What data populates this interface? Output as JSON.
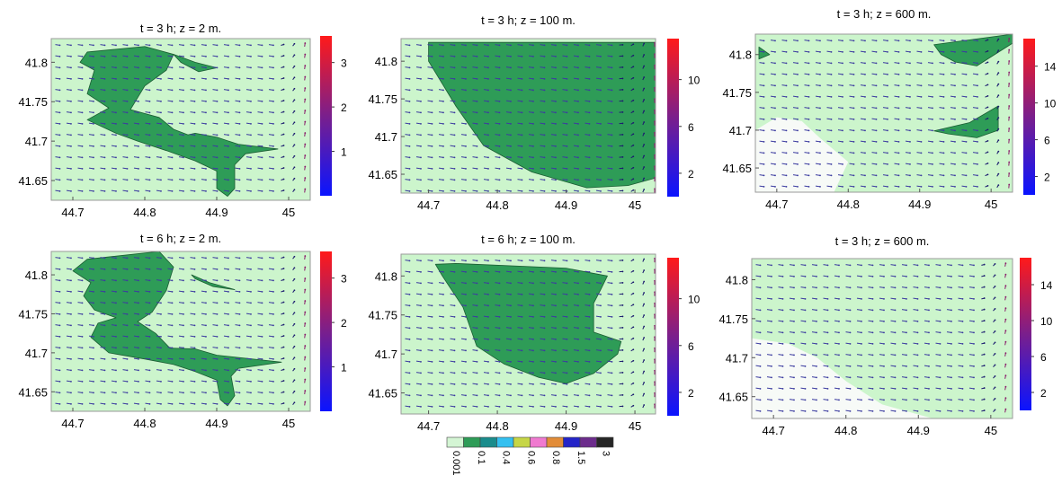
{
  "chart_data": [
    {
      "type": "heatmap",
      "title": "t = 3 h; z = 2 m.",
      "xticks": [
        "44.7",
        "44.8",
        "44.9",
        "45"
      ],
      "yticks": [
        "41.8",
        "41.75",
        "41.7",
        "41.65"
      ],
      "xlim": [
        44.67,
        45.03
      ],
      "ylim": [
        41.625,
        41.83
      ],
      "colorbar": {
        "ticks": [
          "3",
          "2",
          "1"
        ],
        "range": [
          0,
          3.6
        ]
      },
      "regions": [
        [
          [
            44.72,
            41.813
          ],
          [
            44.8,
            41.82
          ],
          [
            44.84,
            41.81
          ],
          [
            44.83,
            41.79
          ],
          [
            44.8,
            41.77
          ],
          [
            44.78,
            41.74
          ],
          [
            44.82,
            41.73
          ],
          [
            44.84,
            41.715
          ],
          [
            44.86,
            41.708
          ],
          [
            44.87,
            41.71
          ],
          [
            44.9,
            41.705
          ],
          [
            44.93,
            41.696
          ],
          [
            44.985,
            41.69
          ],
          [
            44.94,
            41.684
          ],
          [
            44.925,
            41.67
          ],
          [
            44.925,
            41.64
          ],
          [
            44.915,
            41.63
          ],
          [
            44.9,
            41.64
          ],
          [
            44.9,
            41.662
          ],
          [
            44.87,
            41.675
          ],
          [
            44.83,
            41.688
          ],
          [
            44.79,
            41.7
          ],
          [
            44.76,
            41.71
          ],
          [
            44.72,
            41.727
          ],
          [
            44.75,
            41.742
          ],
          [
            44.72,
            41.76
          ],
          [
            44.73,
            41.79
          ],
          [
            44.71,
            41.8
          ]
        ],
        [
          [
            44.84,
            41.81
          ],
          [
            44.87,
            41.8
          ],
          [
            44.9,
            41.793
          ],
          [
            44.875,
            41.788
          ],
          [
            44.85,
            41.8
          ]
        ]
      ],
      "vector_field": true
    },
    {
      "type": "heatmap",
      "title": "t = 3 h; z = 100 m.",
      "xticks": [
        "44.7",
        "44.8",
        "44.9",
        "45"
      ],
      "yticks": [
        "41.8",
        "41.75",
        "41.7",
        "41.65"
      ],
      "xlim": [
        44.66,
        45.03
      ],
      "ylim": [
        41.625,
        41.83
      ],
      "colorbar": {
        "ticks": [
          "10",
          "6",
          "2"
        ],
        "range": [
          0,
          13.5
        ]
      },
      "regions": [
        [
          [
            44.7,
            41.825
          ],
          [
            45.03,
            41.825
          ],
          [
            45.03,
            41.645
          ],
          [
            44.99,
            41.635
          ],
          [
            44.93,
            41.632
          ],
          [
            44.85,
            41.653
          ],
          [
            44.78,
            41.688
          ],
          [
            44.74,
            41.74
          ],
          [
            44.7,
            41.8
          ]
        ]
      ],
      "vector_field": true
    },
    {
      "type": "heatmap",
      "title": "t = 3 h; z = 600 m.",
      "xticks": [
        "44.7",
        "44.8",
        "44.9",
        "45"
      ],
      "yticks": [
        "41.8",
        "41.75",
        "41.7",
        "41.65"
      ],
      "xlim": [
        44.67,
        45.03
      ],
      "ylim": [
        41.618,
        41.827
      ],
      "colorbar": {
        "ticks": [
          "14",
          "10",
          "6",
          "2"
        ],
        "range": [
          0,
          17
        ]
      },
      "regions": [
        [
          [
            44.92,
            41.813
          ],
          [
            45.03,
            41.827
          ],
          [
            45.03,
            41.815
          ],
          [
            44.98,
            41.785
          ],
          [
            44.95,
            41.79
          ],
          [
            44.93,
            41.8
          ]
        ],
        [
          [
            44.675,
            41.81
          ],
          [
            44.69,
            41.8
          ],
          [
            44.675,
            41.794
          ]
        ],
        [
          [
            44.92,
            41.699
          ],
          [
            44.97,
            41.71
          ],
          [
            45.01,
            41.732
          ],
          [
            45.01,
            41.7
          ],
          [
            44.98,
            41.69
          ],
          [
            44.94,
            41.695
          ]
        ]
      ],
      "regions_white": [
        [
          [
            44.7,
            41.717
          ],
          [
            44.735,
            41.712
          ],
          [
            44.76,
            41.69
          ],
          [
            44.8,
            41.658
          ],
          [
            44.78,
            41.618
          ],
          [
            44.67,
            41.618
          ],
          [
            44.67,
            41.7
          ]
        ]
      ],
      "vector_field": true
    },
    {
      "type": "heatmap",
      "title": "t = 6 h; z = 2 m.",
      "xticks": [
        "44.7",
        "44.8",
        "44.9",
        "45"
      ],
      "yticks": [
        "41.8",
        "41.75",
        "41.7",
        "41.65"
      ],
      "xlim": [
        44.67,
        45.03
      ],
      "ylim": [
        41.625,
        41.83
      ],
      "colorbar": {
        "ticks": [
          "3",
          "2",
          "1"
        ],
        "range": [
          0,
          3.6
        ]
      },
      "regions": [
        [
          [
            44.72,
            41.82
          ],
          [
            44.82,
            41.83
          ],
          [
            44.84,
            41.81
          ],
          [
            44.83,
            41.78
          ],
          [
            44.81,
            41.752
          ],
          [
            44.79,
            41.74
          ],
          [
            44.815,
            41.725
          ],
          [
            44.835,
            41.706
          ],
          [
            44.87,
            41.705
          ],
          [
            44.9,
            41.697
          ],
          [
            44.99,
            41.688
          ],
          [
            44.93,
            41.68
          ],
          [
            44.92,
            41.67
          ],
          [
            44.925,
            41.645
          ],
          [
            44.915,
            41.632
          ],
          [
            44.905,
            41.64
          ],
          [
            44.9,
            41.665
          ],
          [
            44.87,
            41.676
          ],
          [
            44.84,
            41.685
          ],
          [
            44.8,
            41.692
          ],
          [
            44.75,
            41.7
          ],
          [
            44.725,
            41.72
          ],
          [
            44.735,
            41.738
          ],
          [
            44.76,
            41.745
          ],
          [
            44.73,
            41.755
          ],
          [
            44.715,
            41.773
          ],
          [
            44.725,
            41.79
          ],
          [
            44.7,
            41.805
          ]
        ],
        [
          [
            44.865,
            41.8
          ],
          [
            44.89,
            41.79
          ],
          [
            44.925,
            41.781
          ],
          [
            44.895,
            41.785
          ],
          [
            44.87,
            41.795
          ]
        ]
      ],
      "vector_field": true
    },
    {
      "type": "heatmap",
      "title": "t = 6 h; z = 100 m.",
      "xticks": [
        "44.7",
        "44.8",
        "44.9",
        "45"
      ],
      "yticks": [
        "41.8",
        "41.75",
        "41.7",
        "41.65"
      ],
      "xlim": [
        44.66,
        45.03
      ],
      "ylim": [
        41.623,
        41.828
      ],
      "colorbar": {
        "ticks": [
          "10",
          "6",
          "2"
        ],
        "range": [
          0,
          13.5
        ]
      },
      "regions": [
        [
          [
            44.71,
            41.815
          ],
          [
            44.74,
            41.816
          ],
          [
            44.9,
            41.81
          ],
          [
            44.96,
            41.8
          ],
          [
            44.95,
            41.782
          ],
          [
            44.94,
            41.765
          ],
          [
            44.94,
            41.728
          ],
          [
            44.98,
            41.716
          ],
          [
            44.975,
            41.7
          ],
          [
            44.94,
            41.675
          ],
          [
            44.9,
            41.662
          ],
          [
            44.86,
            41.67
          ],
          [
            44.81,
            41.687
          ],
          [
            44.77,
            41.71
          ],
          [
            44.75,
            41.76
          ],
          [
            44.72,
            41.8
          ]
        ]
      ],
      "vector_field": true
    },
    {
      "type": "heatmap",
      "title": "t = 3 h; z = 600 m.",
      "xticks": [
        "44.7",
        "44.8",
        "44.9",
        "45"
      ],
      "yticks": [
        "41.8",
        "41.75",
        "41.7",
        "41.65"
      ],
      "xlim": [
        44.67,
        45.03
      ],
      "ylim": [
        41.622,
        41.827
      ],
      "colorbar": {
        "ticks": [
          "14",
          "10",
          "6",
          "2"
        ],
        "range": [
          0,
          17
        ]
      },
      "regions": [],
      "regions_white": [
        [
          [
            44.67,
            41.725
          ],
          [
            44.72,
            41.718
          ],
          [
            44.76,
            41.7
          ],
          [
            44.8,
            41.67
          ],
          [
            44.85,
            41.64
          ],
          [
            44.92,
            41.622
          ],
          [
            44.67,
            41.622
          ]
        ]
      ],
      "vector_field": true
    }
  ],
  "legend": {
    "labels": [
      "0.001",
      "0.1",
      "0.4",
      "0.6",
      "0.8",
      "1.5",
      "3"
    ],
    "colors": [
      "#d4f5d4",
      "#2e9c57",
      "#1a8c8c",
      "#34c0f0",
      "#c6d646",
      "#f07ad0",
      "#e28c38",
      "#2424c8",
      "#6c2c8c",
      "#262626"
    ]
  },
  "colors": {
    "background": "#ccf5cc",
    "plume": "#2e9c57",
    "plume_edge": "#1b5c33",
    "white_region": "#f7faf7",
    "vector_light": "#3c3ca0",
    "vector_dark": "#1c1c70",
    "vector_edge": "#8a1a6a"
  }
}
